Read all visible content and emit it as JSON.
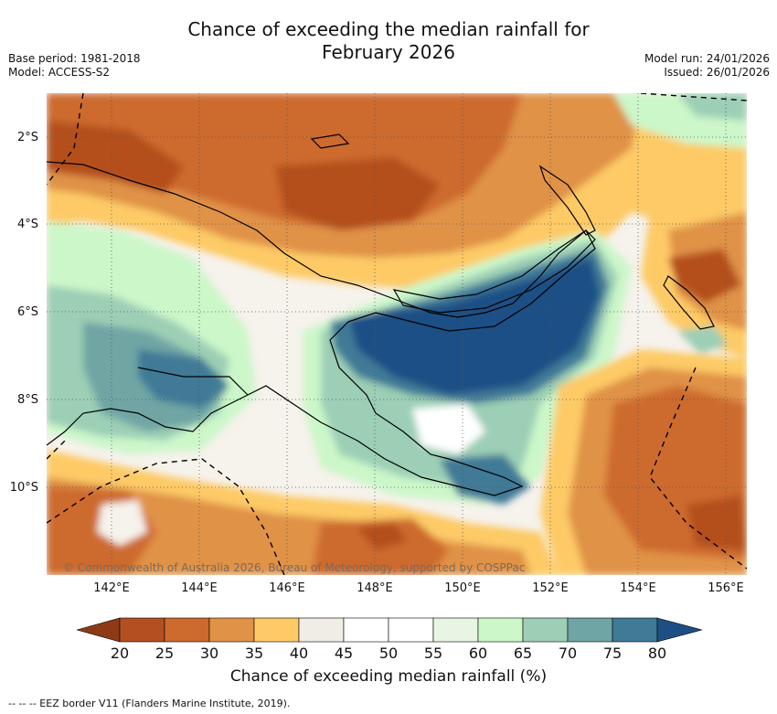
{
  "title": {
    "line1": "Chance of exceeding the median rainfall for",
    "line2": "February 2026"
  },
  "meta_left": {
    "base_period": "Base period: 1981-2018",
    "model": "Model: ACCESS-S2"
  },
  "meta_right": {
    "model_run": "Model run: 24/01/2026",
    "issued": "Issued: 26/01/2026"
  },
  "map": {
    "copyright": "© Commonwealth of Australia 2026, Bureau of Meteorology, supported by COSPPac",
    "lat_labels": [
      "2°S",
      "4°S",
      "6°S",
      "8°S",
      "10°S"
    ],
    "lon_labels": [
      "142°E",
      "144°E",
      "146°E",
      "148°E",
      "150°E",
      "152°E",
      "154°E",
      "156°E"
    ]
  },
  "colorbar": {
    "ticks": [
      "20",
      "25",
      "30",
      "35",
      "40",
      "45",
      "50",
      "55",
      "60",
      "65",
      "70",
      "75",
      "80"
    ],
    "colors": [
      "#8e3a17",
      "#b4501f",
      "#cd6a2e",
      "#e09246",
      "#fdca66",
      "#f0ece6",
      "#ffffff",
      "#ffffff",
      "#e8f5e4",
      "#ccf7c9",
      "#9ccfb5",
      "#6fa5a4",
      "#3f7a97",
      "#1d4f85"
    ],
    "label": "Chance of exceeding median rainfall (%)"
  },
  "legend": {
    "eez": "--  --  -- EEZ border V11 (Flanders Marine Institute, 2019)."
  }
}
